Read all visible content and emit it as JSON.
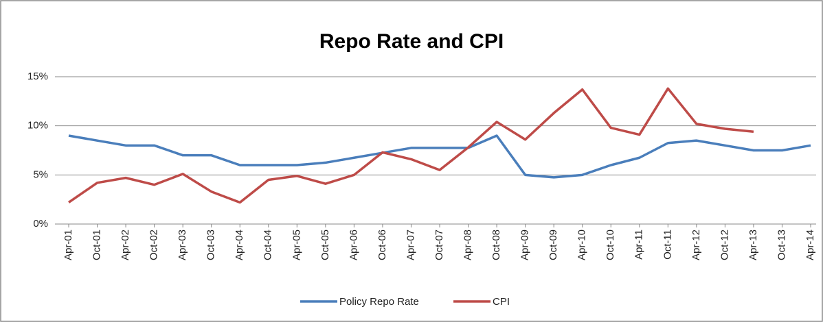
{
  "chart_data": {
    "type": "line",
    "title": "Repo Rate and CPI",
    "categories": [
      "Apr-01",
      "Oct-01",
      "Apr-02",
      "Oct-02",
      "Apr-03",
      "Oct-03",
      "Apr-04",
      "Oct-04",
      "Apr-05",
      "Oct-05",
      "Apr-06",
      "Oct-06",
      "Apr-07",
      "Oct-07",
      "Apr-08",
      "Oct-08",
      "Apr-09",
      "Oct-09",
      "Apr-10",
      "Oct-10",
      "Apr-11",
      "Oct-11",
      "Apr-12",
      "Oct-12",
      "Apr-13",
      "Oct-13",
      "Apr-14"
    ],
    "series": [
      {
        "name": "Policy Repo Rate",
        "color": "#4a7ebb",
        "values": [
          9,
          8.5,
          8,
          8,
          7,
          7,
          6,
          6,
          6,
          6.25,
          6.75,
          7.25,
          7.75,
          7.75,
          7.75,
          9,
          5,
          4.75,
          5,
          6,
          6.75,
          8.25,
          8.5,
          8,
          7.5,
          7.5,
          8
        ]
      },
      {
        "name": "CPI",
        "color": "#be4b48",
        "values": [
          2.2,
          4.2,
          4.7,
          4.0,
          5.1,
          3.3,
          2.2,
          4.5,
          4.9,
          4.1,
          5.0,
          7.3,
          6.6,
          5.5,
          7.8,
          10.4,
          8.6,
          11.3,
          13.7,
          9.8,
          9.1,
          13.8,
          10.2,
          9.7,
          9.4,
          null,
          null
        ]
      }
    ],
    "ylim": [
      0,
      15
    ],
    "yticks": [
      {
        "value": 0,
        "label": "0%"
      },
      {
        "value": 5,
        "label": "5%"
      },
      {
        "value": 10,
        "label": "10%"
      },
      {
        "value": 15,
        "label": "15%"
      }
    ],
    "grid": true,
    "legend": "bottom"
  }
}
